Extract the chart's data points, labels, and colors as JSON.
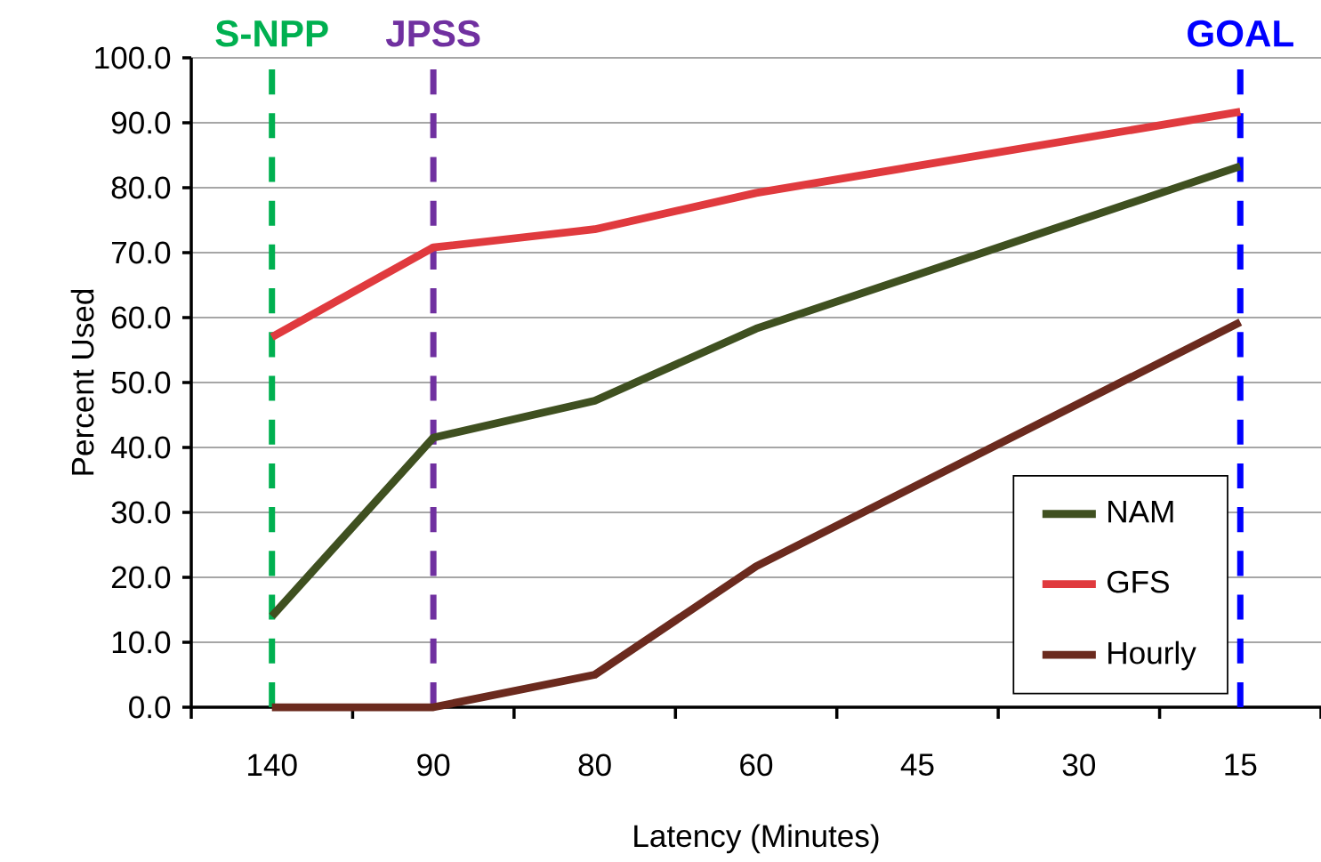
{
  "chart_data": {
    "type": "line",
    "xlabel": "Latency (Minutes)",
    "ylabel": "Percent Used",
    "categories": [
      "140",
      "90",
      "80",
      "60",
      "45",
      "30",
      "15"
    ],
    "series": [
      {
        "name": "NAM",
        "color": "#3f5020",
        "values": [
          14.0,
          41.5,
          47.2,
          58.3,
          null,
          null,
          83.3
        ]
      },
      {
        "name": "GFS",
        "color": "#e03a3e",
        "values": [
          57.0,
          70.8,
          73.6,
          79.2,
          null,
          null,
          91.7
        ]
      },
      {
        "name": "Hourly",
        "color": "#6b2a1e",
        "values": [
          0.0,
          0.0,
          5.0,
          21.7,
          null,
          null,
          59.3
        ]
      }
    ],
    "ylim": [
      0,
      100
    ],
    "yticks": [
      {
        "value": 0,
        "label": "0.0"
      },
      {
        "value": 10,
        "label": "10.0"
      },
      {
        "value": 20,
        "label": "20.0"
      },
      {
        "value": 30,
        "label": "30.0"
      },
      {
        "value": 40,
        "label": "40.0"
      },
      {
        "value": 50,
        "label": "50.0"
      },
      {
        "value": 60,
        "label": "60.0"
      },
      {
        "value": 70,
        "label": "70.0"
      },
      {
        "value": 80,
        "label": "80.0"
      },
      {
        "value": 90,
        "label": "90.0"
      },
      {
        "value": 100,
        "label": "100.0"
      }
    ],
    "ref_lines": [
      {
        "axis": "x",
        "value": "140",
        "label": "S-NPP",
        "color": "#00b050",
        "line_style": "dashed"
      },
      {
        "axis": "x",
        "value": "90",
        "label": "JPSS",
        "color": "#7030a0",
        "line_style": "dashed"
      },
      {
        "axis": "x",
        "value": "15",
        "label": "GOAL",
        "color": "#0000ff",
        "line_style": "dashed"
      }
    ],
    "grid": "y",
    "legend": "bottom right",
    "marker": "none",
    "line_style": "solid"
  }
}
